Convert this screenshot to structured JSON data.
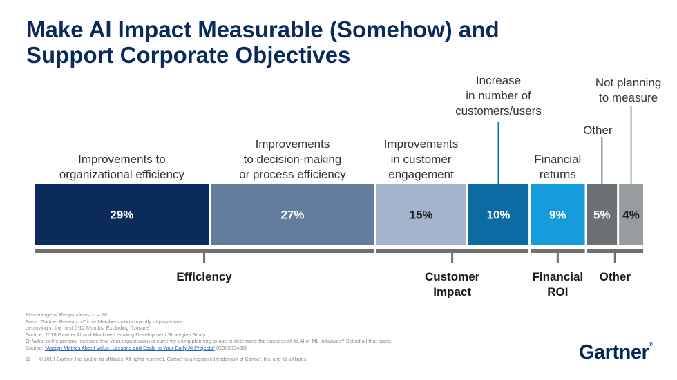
{
  "title": {
    "line1": "Make AI Impact Measurable (Somehow) and",
    "line2": "Support Corporate Objectives"
  },
  "chart_data": {
    "type": "bar",
    "orientation": "horizontal-stacked",
    "title": "Make AI Impact Measurable (Somehow) and Support Corporate Objectives",
    "unit": "%",
    "segments": [
      {
        "label": [
          "Improvements to",
          "organizational efficiency"
        ],
        "value": 29,
        "display": "29%",
        "color": "#0b2c5a",
        "text_color": "#ffffff",
        "group": "efficiency"
      },
      {
        "label": [
          "Improvements",
          "to decision-making",
          "or process efficiency"
        ],
        "value": 27,
        "display": "27%",
        "color": "#647d9f",
        "text_color": "#ffffff",
        "group": "efficiency"
      },
      {
        "label": [
          "Improvements",
          "in customer",
          "engagement"
        ],
        "value": 15,
        "display": "15%",
        "color": "#a3b4cc",
        "text_color": "#1a1a1a",
        "group": "customer"
      },
      {
        "label": [
          "Increase",
          "in number of",
          "customers/users"
        ],
        "value": 10,
        "display": "10%",
        "color": "#0d6ba3",
        "text_color": "#ffffff",
        "group": "customer"
      },
      {
        "label": [
          "Financial",
          "returns"
        ],
        "value": 9,
        "display": "9%",
        "color": "#149bd9",
        "text_color": "#ffffff",
        "group": "financial"
      },
      {
        "label": [
          "Other"
        ],
        "value": 5,
        "display": "5%",
        "color": "#6a7073",
        "text_color": "#ffffff",
        "group": "other"
      },
      {
        "label": [
          "Not planning",
          "to measure"
        ],
        "value": 4,
        "display": "4%",
        "color": "#979c9e",
        "text_color": "#1a1a1a",
        "group": "other"
      }
    ],
    "groups": [
      {
        "id": "efficiency",
        "label": [
          "Efficiency"
        ]
      },
      {
        "id": "customer",
        "label": [
          "Customer",
          "Impact"
        ]
      },
      {
        "id": "financial",
        "label": [
          "Financial",
          "ROI"
        ]
      },
      {
        "id": "other",
        "label": [
          "Other"
        ]
      }
    ]
  },
  "footnotes": {
    "line1": "Percentage of Respondents, n = 78",
    "line2": "Base: Gartner Research Circle Members who currently deployed/are",
    "line3": "deploying in the next 0-12 Months; Excluding “Unsure”",
    "line4": "Source: 2018 Gartner AI and Machine Learning Development Strategies Study",
    "line5": "Q: What is the primary measure that your organization is currently using/planning to use to determine the success of its AI or ML initiatives? Select all that apply.",
    "source_prefix": "Source: ",
    "source_link": "“Assign Metrics About Value, Lessons and Scale to Your Early AI Projects”",
    "source_id": " (G00383486)"
  },
  "footer": {
    "page_number": "12",
    "copyright": "© 2019 Gartner, Inc. and/or its affiliates. All rights reserved. Gartner is a registered trademark of Gartner, Inc. and its affiliates."
  },
  "logo": {
    "text": "Gartner",
    "mark": "®"
  }
}
